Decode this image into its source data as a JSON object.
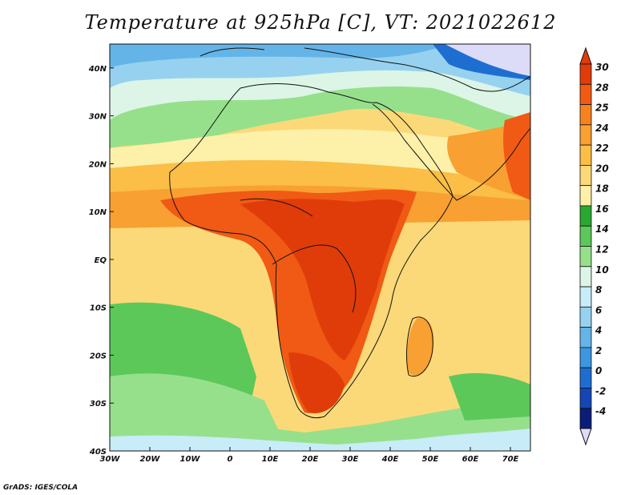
{
  "title": "Temperature at 925hPa [C], VT: 2021022612",
  "credit": "GrADS: IGES/COLA",
  "map": {
    "lon_range": [
      -30,
      75
    ],
    "lat_range": [
      -40,
      45
    ],
    "x_ticks": [
      {
        "value": -30,
        "label": "30W"
      },
      {
        "value": -20,
        "label": "20W"
      },
      {
        "value": -10,
        "label": "10W"
      },
      {
        "value": 0,
        "label": "0"
      },
      {
        "value": 10,
        "label": "10E"
      },
      {
        "value": 20,
        "label": "20E"
      },
      {
        "value": 30,
        "label": "30E"
      },
      {
        "value": 40,
        "label": "40E"
      },
      {
        "value": 50,
        "label": "50E"
      },
      {
        "value": 60,
        "label": "60E"
      },
      {
        "value": 70,
        "label": "70E"
      }
    ],
    "y_ticks": [
      {
        "value": 40,
        "label": "40N"
      },
      {
        "value": 30,
        "label": "30N"
      },
      {
        "value": 20,
        "label": "20N"
      },
      {
        "value": 10,
        "label": "10N"
      },
      {
        "value": 0,
        "label": "EQ"
      },
      {
        "value": -10,
        "label": "10S"
      },
      {
        "value": -20,
        "label": "20S"
      },
      {
        "value": -30,
        "label": "30S"
      },
      {
        "value": -40,
        "label": "40S"
      }
    ]
  },
  "colorbar": {
    "levels": [
      "30",
      "28",
      "25",
      "24",
      "22",
      "20",
      "18",
      "16",
      "14",
      "12",
      "10",
      "8",
      "6",
      "4",
      "2",
      "0",
      "-2",
      "-4"
    ],
    "colors": [
      "#e03c0a",
      "#f05a14",
      "#f5821e",
      "#f8a032",
      "#fbbe46",
      "#fcd978",
      "#fdf0a8",
      "#2aa832",
      "#5cc85a",
      "#96e08c",
      "#dcf5e6",
      "#c8ecf8",
      "#96d2f0",
      "#64b4e8",
      "#3c96e0",
      "#1e6ed2",
      "#1446b4",
      "#0a1e78"
    ],
    "top_color": "#e03c0a",
    "bottom_color": "#dcdcf8"
  }
}
